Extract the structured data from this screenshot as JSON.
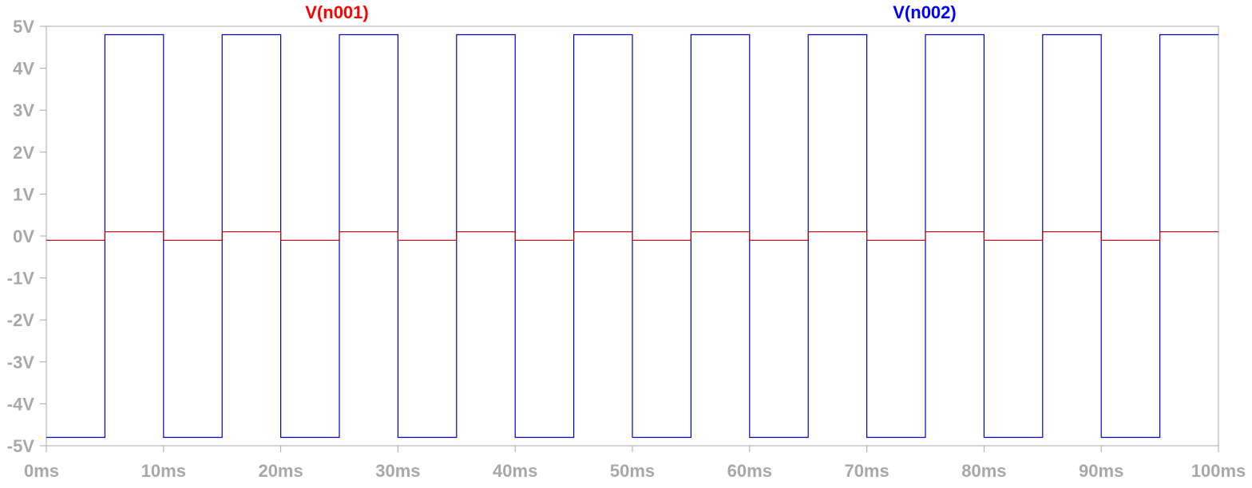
{
  "chart_data": {
    "type": "line",
    "title": "",
    "xlabel": "",
    "ylabel": "",
    "xlim": [
      0,
      100
    ],
    "ylim": [
      -5,
      5
    ],
    "x_unit": "ms",
    "y_unit": "V",
    "x_ticks": [
      0,
      10,
      20,
      30,
      40,
      50,
      60,
      70,
      80,
      90,
      100
    ],
    "x_tick_labels": [
      "0ms",
      "10ms",
      "20ms",
      "30ms",
      "40ms",
      "50ms",
      "60ms",
      "70ms",
      "80ms",
      "90ms",
      "100ms"
    ],
    "y_ticks": [
      5,
      4,
      3,
      2,
      1,
      0,
      -1,
      -2,
      -3,
      -4,
      -5
    ],
    "y_tick_labels": [
      "5V",
      "4V",
      "3V",
      "2V",
      "1V",
      "0V",
      "-1V",
      "-2V",
      "-3V",
      "-4V",
      "-5V"
    ],
    "grid": false,
    "legend": "top",
    "series": [
      {
        "name": "V(n001)",
        "color": "#ff0000",
        "trace_color": "#b00000",
        "x": [
          0,
          5,
          5,
          10,
          10,
          15,
          15,
          20,
          20,
          25,
          25,
          30,
          30,
          35,
          35,
          40,
          40,
          45,
          45,
          50,
          50,
          55,
          55,
          60,
          60,
          65,
          65,
          70,
          70,
          75,
          75,
          80,
          80,
          85,
          85,
          90,
          90,
          95,
          95,
          100
        ],
        "y": [
          -0.1,
          -0.1,
          0.1,
          0.1,
          -0.1,
          -0.1,
          0.1,
          0.1,
          -0.1,
          -0.1,
          0.1,
          0.1,
          -0.1,
          -0.1,
          0.1,
          0.1,
          -0.1,
          -0.1,
          0.1,
          0.1,
          -0.1,
          -0.1,
          0.1,
          0.1,
          -0.1,
          -0.1,
          0.1,
          0.1,
          -0.1,
          -0.1,
          0.1,
          0.1,
          -0.1,
          -0.1,
          0.1,
          0.1,
          -0.1,
          -0.1,
          0.1,
          0.1
        ]
      },
      {
        "name": "V(n002)",
        "color": "#0000ff",
        "trace_color": "#0000c0",
        "x": [
          0,
          5,
          5,
          10,
          10,
          15,
          15,
          20,
          20,
          25,
          25,
          30,
          30,
          35,
          35,
          40,
          40,
          45,
          45,
          50,
          50,
          55,
          55,
          60,
          60,
          65,
          65,
          70,
          70,
          75,
          75,
          80,
          80,
          85,
          85,
          90,
          90,
          95,
          95,
          100
        ],
        "y": [
          -4.8,
          -4.8,
          4.8,
          4.8,
          -4.8,
          -4.8,
          4.8,
          4.8,
          -4.8,
          -4.8,
          4.8,
          4.8,
          -4.8,
          -4.8,
          4.8,
          4.8,
          -4.8,
          -4.8,
          4.8,
          4.8,
          -4.8,
          -4.8,
          4.8,
          4.8,
          -4.8,
          -4.8,
          4.8,
          4.8,
          -4.8,
          -4.8,
          4.8,
          4.8,
          -4.8,
          -4.8,
          4.8,
          4.8,
          -4.8,
          -4.8,
          4.8,
          4.8
        ]
      }
    ],
    "axis_color": "#a8a8a8",
    "tick_label_color": "#a8a8a8"
  }
}
